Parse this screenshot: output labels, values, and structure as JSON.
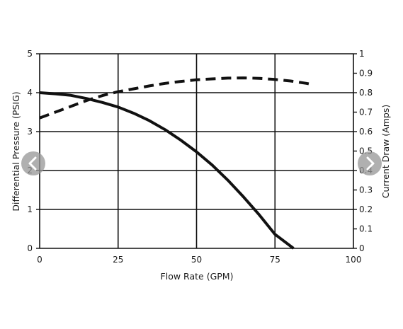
{
  "chart_data": {
    "type": "line",
    "title": "",
    "xlabel": "Flow Rate (GPM)",
    "ylabel": "Differential Pressure (PSIG)",
    "y2label": "Current Draw (Amps)",
    "xlim": [
      0,
      100
    ],
    "ylim": [
      0,
      5
    ],
    "y2lim": [
      0,
      1
    ],
    "x_ticks": [
      "0",
      "25",
      "50",
      "75",
      "100"
    ],
    "y_ticks": [
      "0",
      "1",
      "2",
      "3",
      "4",
      "5"
    ],
    "y2_ticks": [
      "0",
      "0.1",
      "0.2",
      "0.3",
      "0.4",
      "0.5",
      "0.6",
      "0.7",
      "0.8",
      "0.9",
      "1"
    ],
    "grid": true,
    "series": [
      {
        "style": "solid",
        "axis": "left",
        "x": [
          0,
          5,
          10,
          15,
          20,
          25,
          30,
          35,
          40,
          45,
          50,
          55,
          60,
          65,
          70,
          75,
          80.9
        ],
        "y": [
          4.0,
          3.97,
          3.93,
          3.85,
          3.75,
          3.63,
          3.47,
          3.28,
          3.05,
          2.78,
          2.48,
          2.14,
          1.75,
          1.32,
          0.86,
          0.36,
          0.0
        ]
      },
      {
        "style": "dashed",
        "axis": "right",
        "x": [
          0,
          5,
          10,
          15,
          20,
          25,
          30,
          35,
          40,
          45,
          50,
          55,
          60,
          65,
          70,
          75,
          80,
          85,
          87.5
        ],
        "y": [
          0.67,
          0.7,
          0.73,
          0.76,
          0.785,
          0.805,
          0.82,
          0.835,
          0.848,
          0.858,
          0.866,
          0.871,
          0.875,
          0.876,
          0.874,
          0.868,
          0.86,
          0.848,
          0.84
        ]
      }
    ]
  },
  "navigation": {
    "prev_icon": "chevron-left-icon",
    "next_icon": "chevron-right-icon"
  }
}
